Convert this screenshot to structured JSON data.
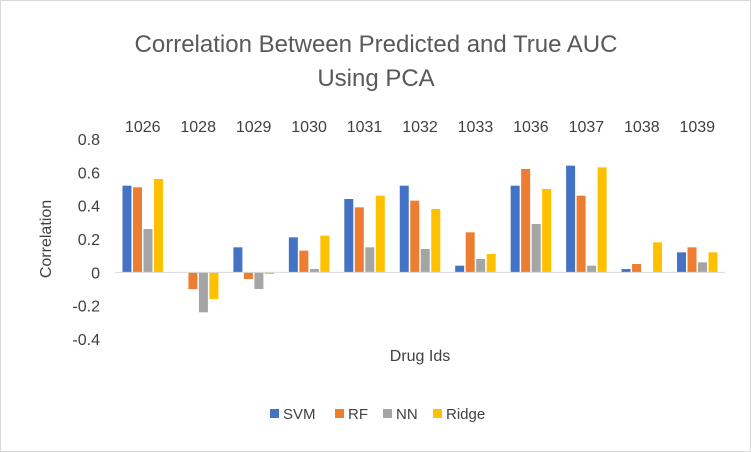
{
  "chart_data": {
    "type": "bar",
    "title": [
      "Correlation Between Predicted and True AUC",
      "Using PCA"
    ],
    "xlabel": "Drug Ids",
    "ylabel": "Correlation",
    "categories": [
      "1026",
      "1028",
      "1029",
      "1030",
      "1031",
      "1032",
      "1033",
      "1036",
      "1037",
      "1038",
      "1039"
    ],
    "ylim": [
      -0.4,
      0.8
    ],
    "yticks": [
      -0.4,
      -0.2,
      0,
      0.2,
      0.4,
      0.6,
      0.8
    ],
    "ytick_labels": [
      "-0.4",
      "-0.2",
      "0",
      "0.2",
      "0.4",
      "0.6",
      "0.8"
    ],
    "grid": false,
    "legend_position": "bottom",
    "category_labels_position": "top",
    "series": [
      {
        "name": "SVM",
        "color": "#4472C4",
        "values": [
          0.52,
          0.0,
          0.15,
          0.21,
          0.44,
          0.52,
          0.04,
          0.52,
          0.64,
          0.02,
          0.12
        ]
      },
      {
        "name": "RF",
        "color": "#ED7D31",
        "values": [
          0.51,
          -0.1,
          -0.04,
          0.13,
          0.39,
          0.43,
          0.24,
          0.62,
          0.46,
          0.05,
          0.15
        ]
      },
      {
        "name": "NN",
        "color": "#A5A5A5",
        "values": [
          0.26,
          -0.24,
          -0.1,
          0.02,
          0.15,
          0.14,
          0.08,
          0.29,
          0.04,
          0.0,
          0.06
        ]
      },
      {
        "name": "Ridge",
        "color": "#FFC000",
        "values": [
          0.56,
          -0.16,
          -0.01,
          0.22,
          0.46,
          0.38,
          0.11,
          0.5,
          0.63,
          0.18,
          0.12
        ]
      }
    ]
  }
}
